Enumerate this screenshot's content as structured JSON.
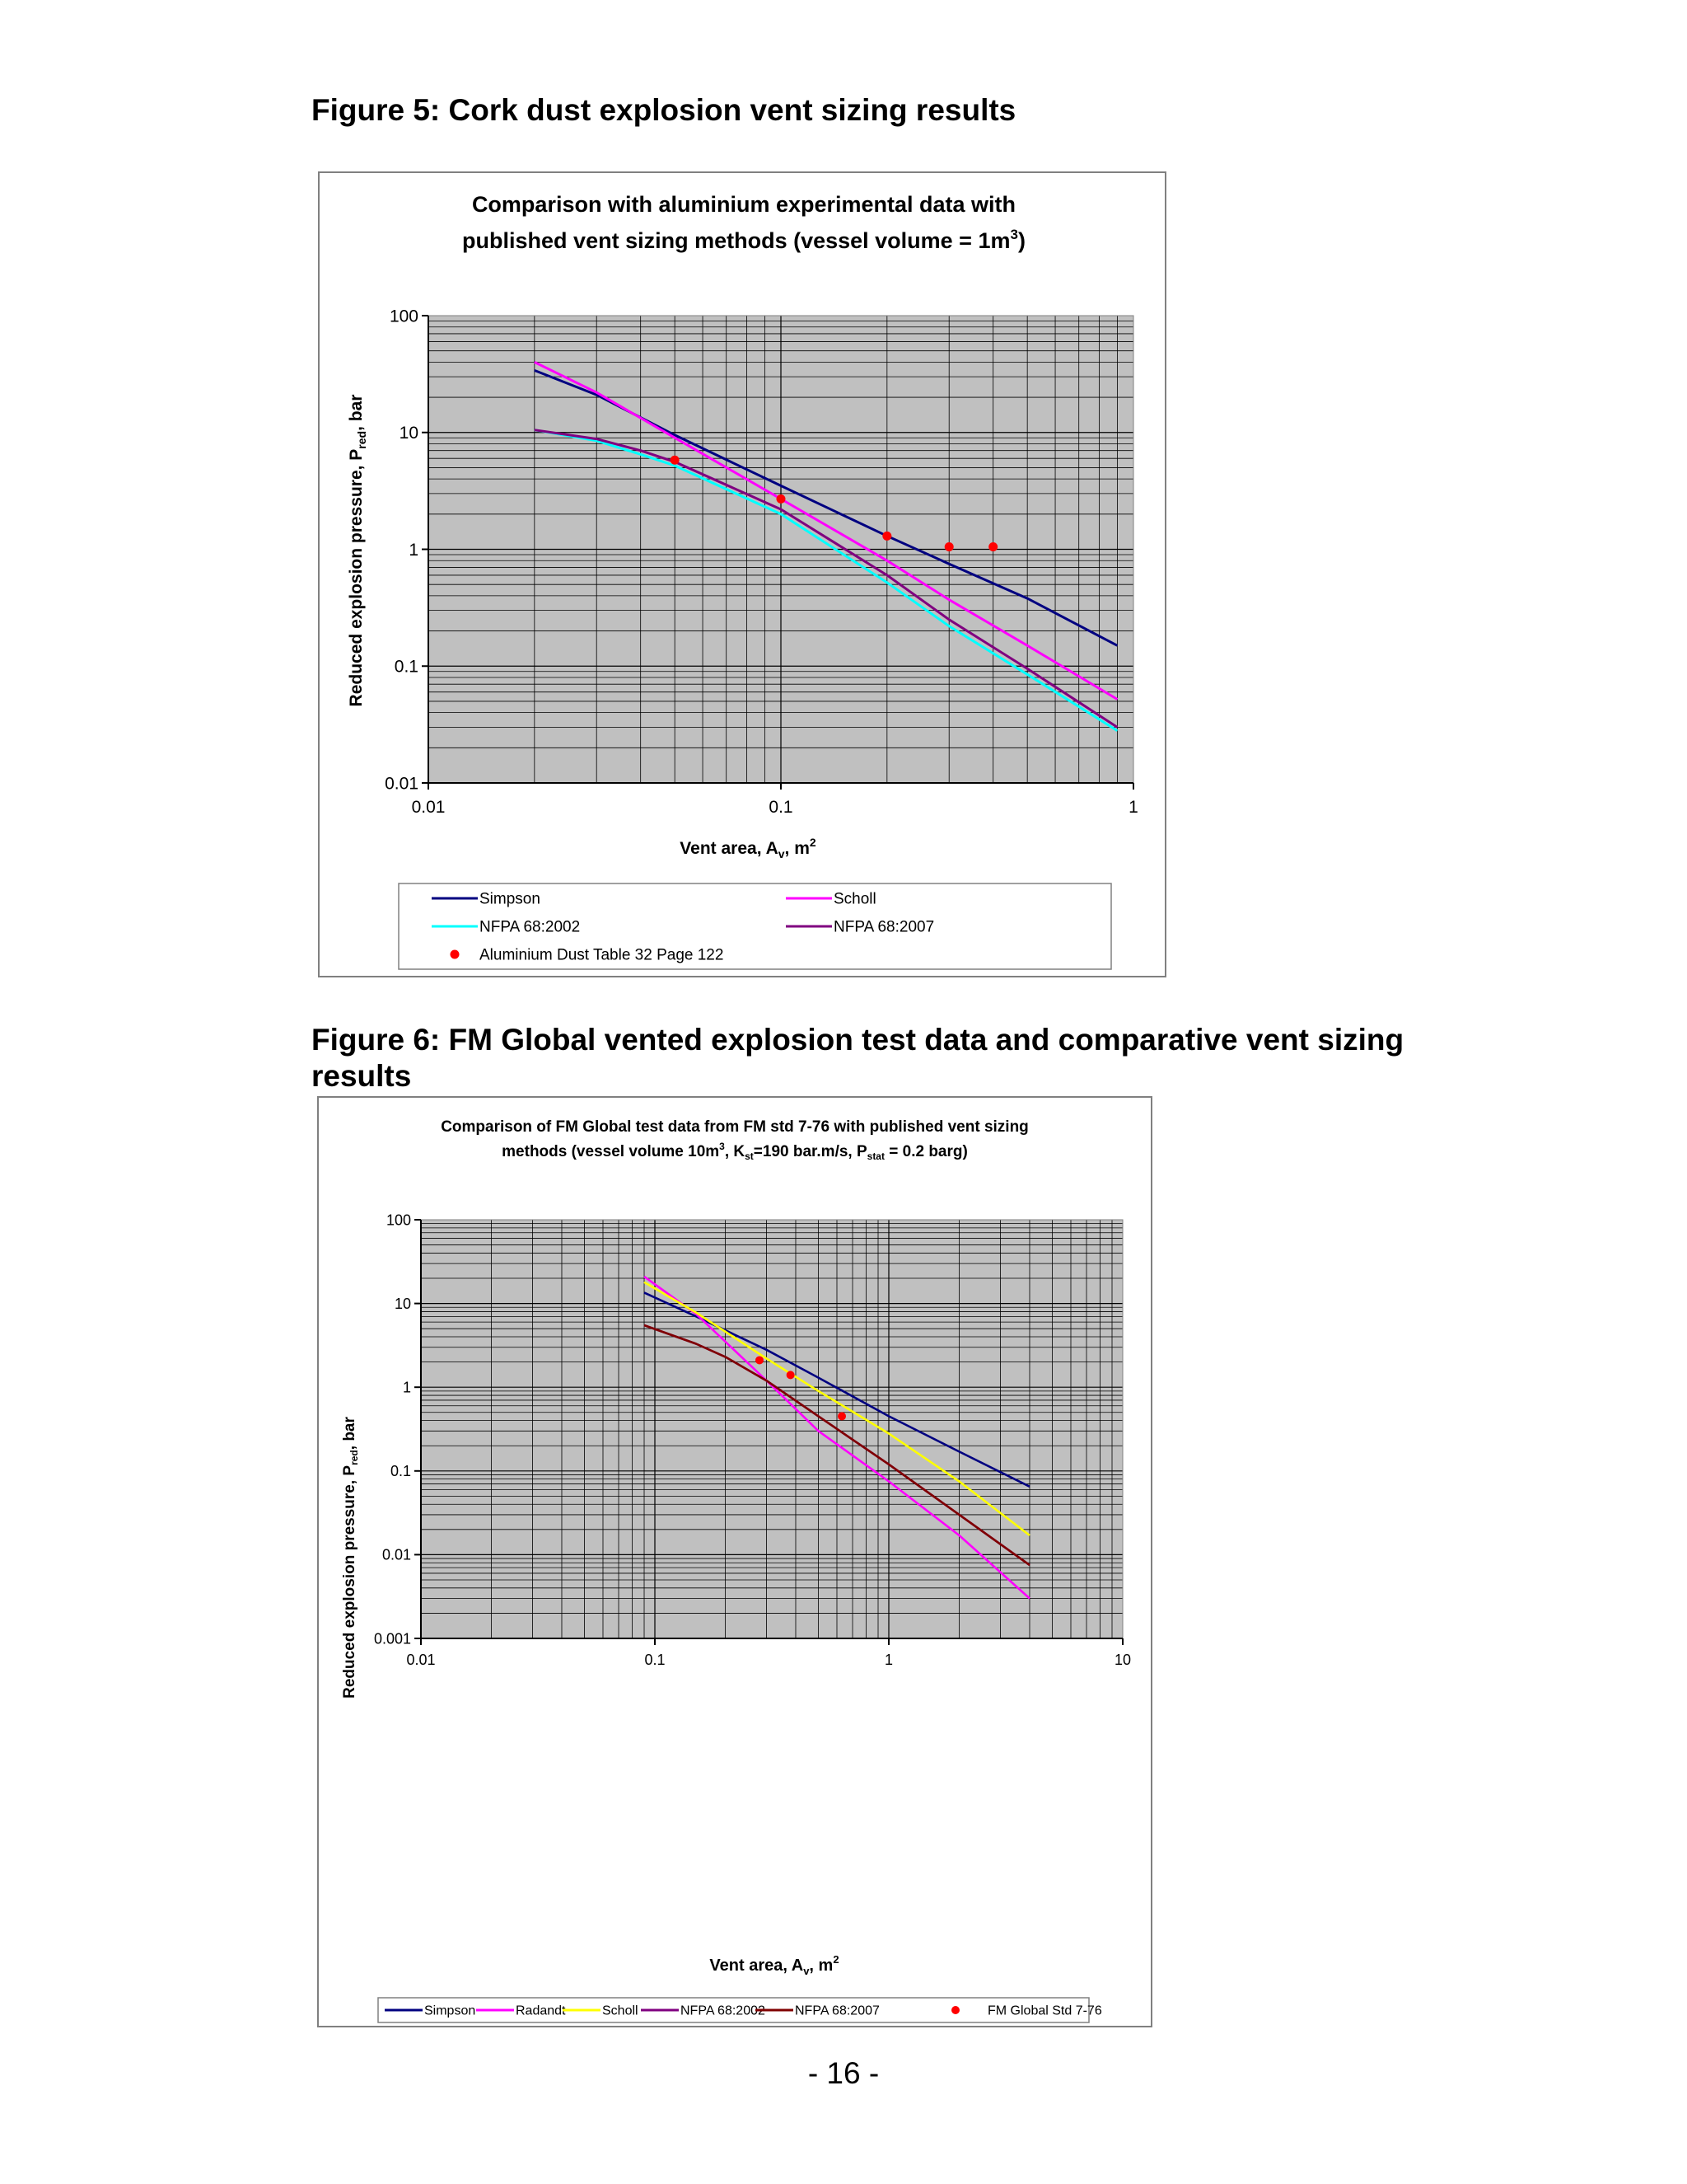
{
  "headings": {
    "fig5": "Figure 5: Cork dust explosion vent sizing results",
    "fig6": "Figure 6: FM Global vented explosion test data and comparative vent sizing results"
  },
  "page_number": "- 16 -",
  "colors": {
    "plot_bg": "#c0c0c0",
    "simpson": "#000080",
    "scholl": "#ff00ff",
    "radandt": "#ff00ff",
    "scholl_fm": "#ffff00",
    "nfpa2002": "#00ffff",
    "nfpa2007": "#800000",
    "data_points": "#ff0000"
  },
  "chart_data": [
    {
      "type": "line",
      "title_line1": "Comparison with aluminium experimental data with",
      "title_line2_pre": "published vent sizing methods (vessel volume = 1m",
      "title_line2_sup": "3",
      "title_line2_post": ")",
      "xlabel": "Vent area, A",
      "xlabel_sub": "v",
      "xlabel_unit": ", m",
      "xlabel_sup": "2",
      "ylabel": "Reduced explosion pressure, P",
      "ylabel_sub": "red",
      "ylabel_post": ", bar",
      "x_scale": "log",
      "y_scale": "log",
      "xlim": [
        0.01,
        1
      ],
      "ylim": [
        0.01,
        100
      ],
      "x_ticks": [
        "0.01",
        "0.1",
        "1"
      ],
      "y_ticks": [
        "0.01",
        "0.1",
        "1",
        "10",
        "100"
      ],
      "grid": true,
      "legend_position": "bottom",
      "series": [
        {
          "name": "Simpson",
          "color": "#000080",
          "x": [
            0.02,
            0.03,
            0.05,
            0.1,
            0.2,
            0.3,
            0.5,
            0.9
          ],
          "y": [
            34,
            21,
            9.5,
            3.5,
            1.3,
            0.75,
            0.38,
            0.15
          ]
        },
        {
          "name": "Scholl",
          "color": "#ff00ff",
          "x": [
            0.02,
            0.03,
            0.05,
            0.1,
            0.2,
            0.3,
            0.5,
            0.9
          ],
          "y": [
            40,
            22,
            9,
            2.7,
            0.8,
            0.37,
            0.15,
            0.052
          ]
        },
        {
          "name": "NFPA 68:2002",
          "color": "#00ffff",
          "x": [
            0.02,
            0.03,
            0.04,
            0.05,
            0.1,
            0.2,
            0.3,
            0.5,
            0.9
          ],
          "y": [
            10.5,
            8.5,
            6.5,
            5.2,
            2.0,
            0.52,
            0.22,
            0.085,
            0.028
          ]
        },
        {
          "name": "NFPA 68:2007",
          "color": "#800080",
          "x": [
            0.02,
            0.03,
            0.04,
            0.05,
            0.1,
            0.2,
            0.3,
            0.5,
            0.9
          ],
          "y": [
            10.5,
            8.8,
            7.0,
            5.6,
            2.2,
            0.6,
            0.25,
            0.095,
            0.03
          ]
        },
        {
          "name": "Aluminium Dust Table 32 Page 122",
          "color": "#ff0000",
          "marker": "circle",
          "x": [
            0.05,
            0.1,
            0.2,
            0.3,
            0.4
          ],
          "y": [
            5.8,
            2.7,
            1.3,
            1.05,
            1.05
          ]
        }
      ]
    },
    {
      "type": "line",
      "title_line1": "Comparison of FM Global test data from FM std 7-76 with published vent sizing",
      "title_line2_pre": "methods (vessel volume 10m",
      "title_line2_sup": "3",
      "title_line2_mid1": ", K",
      "title_line2_sub1": "st",
      "title_line2_mid2": "=190 bar.m/s, P",
      "title_line2_sub2": "stat",
      "title_line2_post": " = 0.2 barg)",
      "xlabel": "Vent area, A",
      "xlabel_sub": "v",
      "xlabel_unit": ", m",
      "xlabel_sup": "2",
      "ylabel": "Reduced explosion pressure, P",
      "ylabel_sub": "red",
      "ylabel_post": ", bar",
      "x_scale": "log",
      "y_scale": "log",
      "xlim": [
        0.01,
        10
      ],
      "ylim": [
        0.001,
        100
      ],
      "x_ticks": [
        "0.01",
        "0.1",
        "1",
        "10"
      ],
      "y_ticks": [
        "0.001",
        "0.01",
        "0.1",
        "1",
        "10",
        "100"
      ],
      "grid": true,
      "legend_position": "bottom",
      "series": [
        {
          "name": "Simpson",
          "color": "#000080",
          "x": [
            0.09,
            0.15,
            0.3,
            0.5,
            1,
            2,
            4
          ],
          "y": [
            13.5,
            7,
            2.8,
            1.3,
            0.45,
            0.17,
            0.065
          ]
        },
        {
          "name": "Radandt",
          "color": "#ff00ff",
          "x": [
            0.09,
            0.15,
            0.3,
            0.5,
            1,
            2,
            4
          ],
          "y": [
            21,
            7.5,
            1.2,
            0.3,
            0.075,
            0.017,
            0.003
          ]
        },
        {
          "name": "Scholl",
          "color": "#ffff00",
          "x": [
            0.09,
            0.15,
            0.3,
            0.5,
            1,
            2,
            4
          ],
          "y": [
            18,
            7.8,
            2.2,
            0.9,
            0.28,
            0.075,
            0.017
          ]
        },
        {
          "name": "NFPA 68:2002",
          "color": "#800080",
          "x": [
            0.09,
            0.15,
            0.2,
            0.3,
            0.5,
            1,
            2,
            4
          ],
          "y": [
            5.5,
            3.3,
            2.3,
            1.2,
            0.45,
            0.12,
            0.03,
            0.0075
          ]
        },
        {
          "name": "NFPA 68:2007",
          "color": "#800000",
          "x": [
            0.09,
            0.15,
            0.2,
            0.3,
            0.5,
            1,
            2,
            4
          ],
          "y": [
            5.5,
            3.3,
            2.3,
            1.2,
            0.45,
            0.12,
            0.03,
            0.0075
          ]
        },
        {
          "name": "FM Global Std 7-76",
          "color": "#ff0000",
          "marker": "circle",
          "x": [
            0.28,
            0.38,
            0.63
          ],
          "y": [
            2.1,
            1.4,
            0.45
          ]
        }
      ]
    }
  ]
}
